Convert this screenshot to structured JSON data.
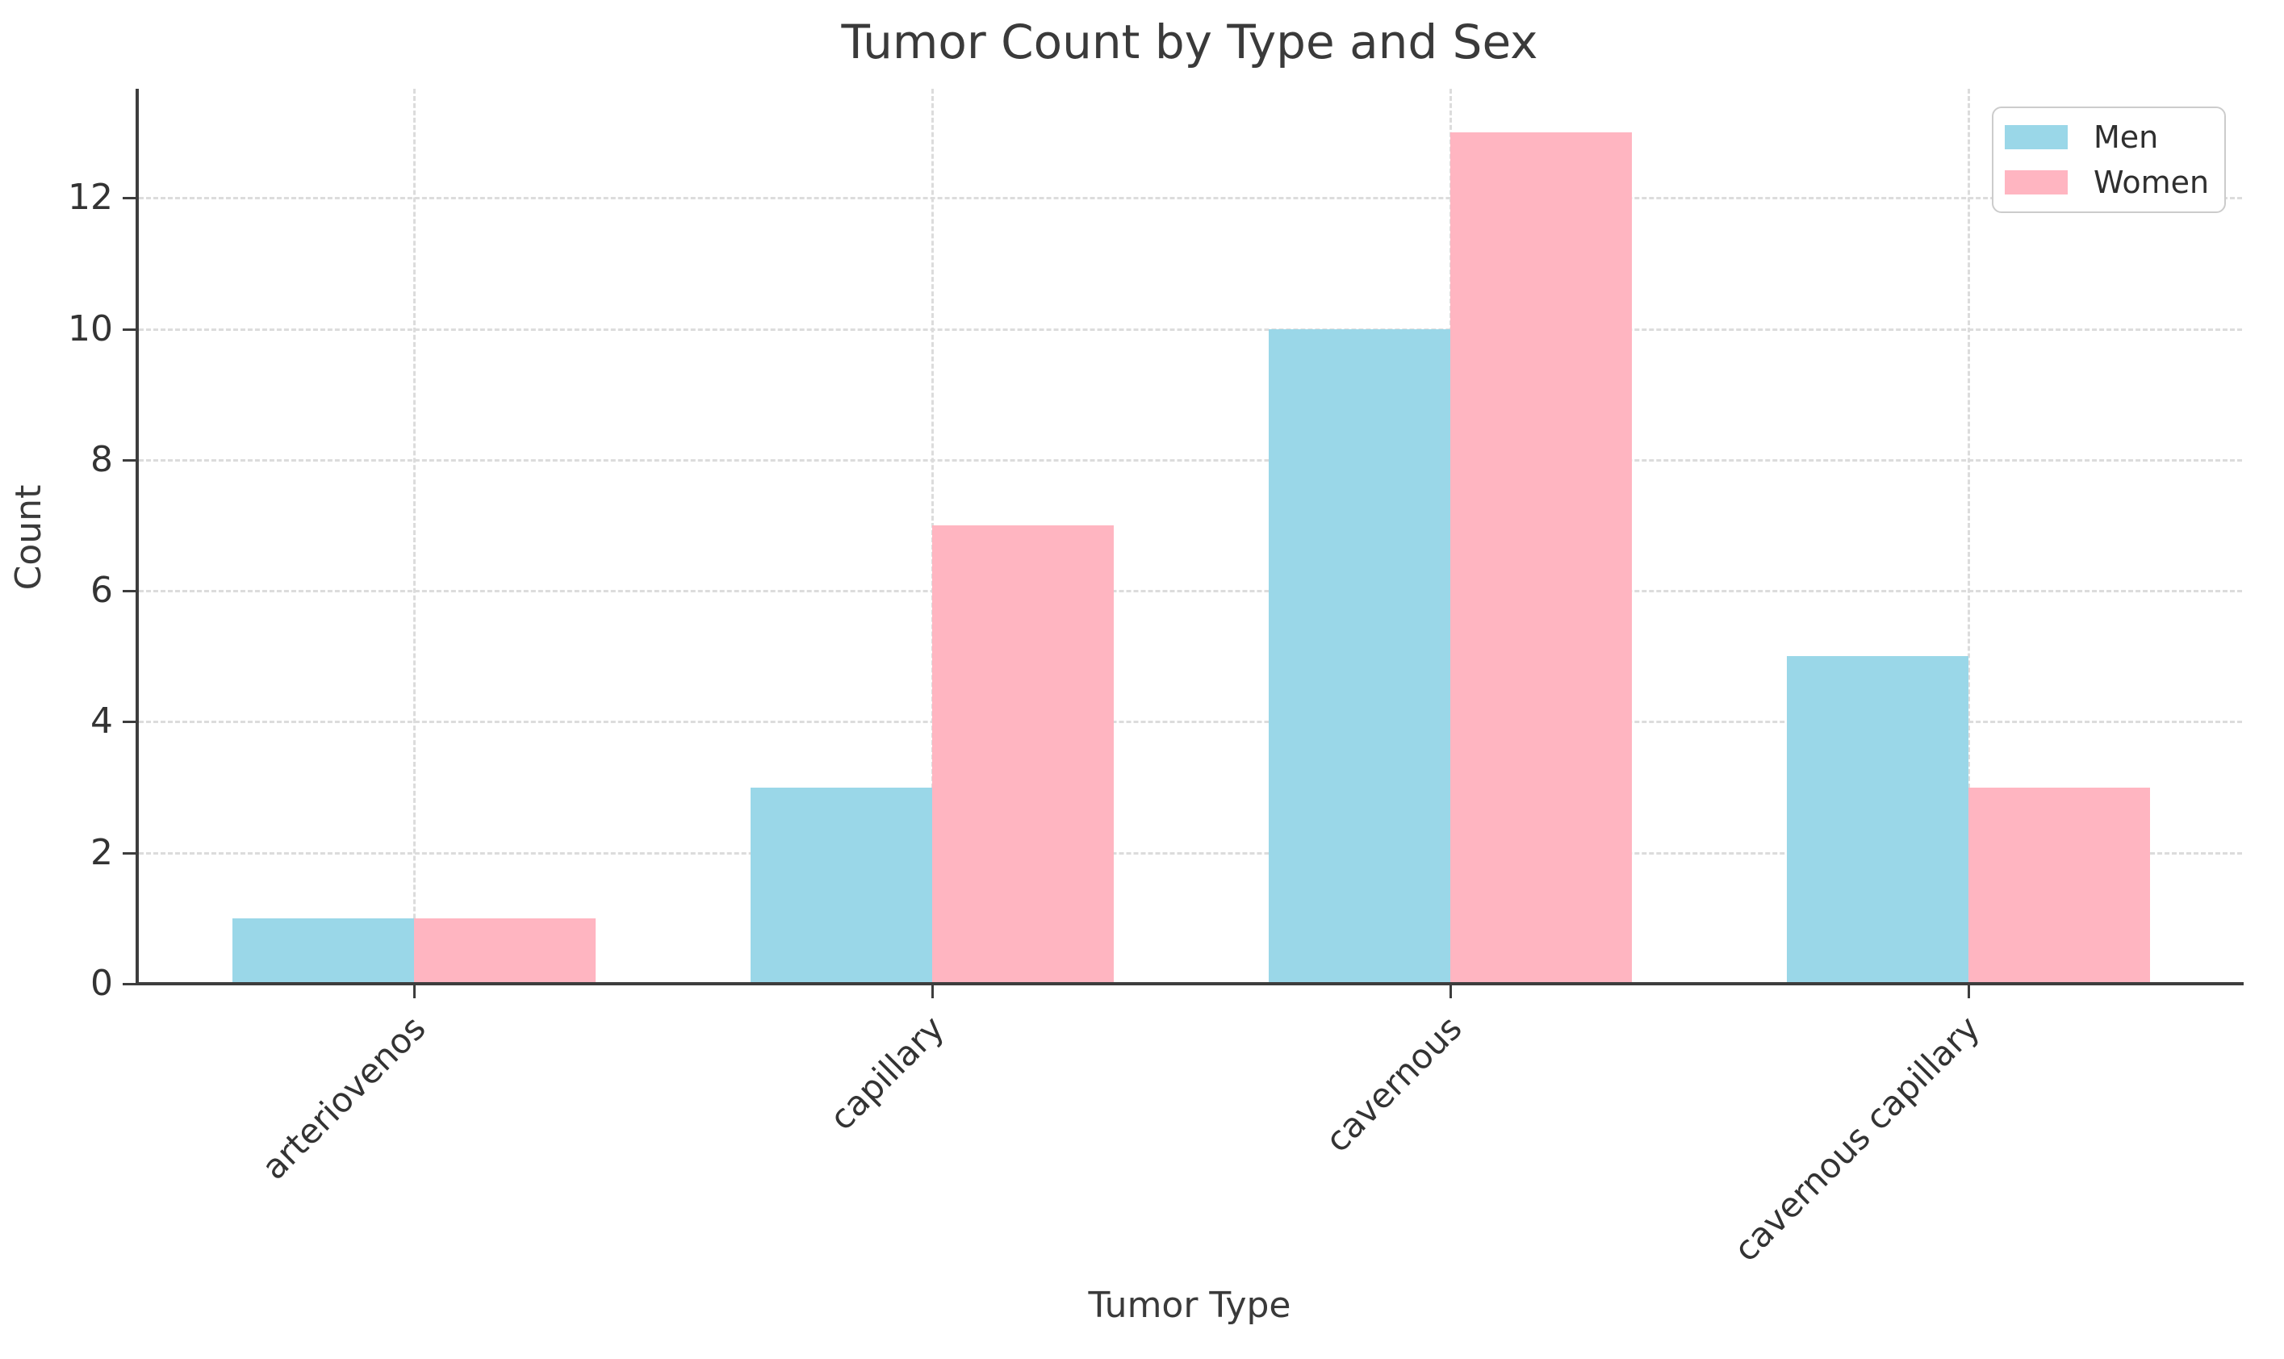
{
  "chart_data": {
    "type": "bar",
    "title": "Tumor Count by Type and Sex",
    "xlabel": "Tumor Type",
    "ylabel": "Count",
    "categories": [
      "arteriovenos",
      "capillary",
      "cavernous",
      "cavernous capillary"
    ],
    "series": [
      {
        "name": "Men",
        "color": "#9AD7E8",
        "values": [
          1,
          3,
          10,
          5
        ]
      },
      {
        "name": "Women",
        "color": "#FFB5C1",
        "values": [
          1,
          7,
          13,
          3
        ]
      }
    ],
    "yticks": [
      0,
      2,
      4,
      6,
      8,
      10,
      12
    ],
    "ylim": [
      0,
      13.67
    ],
    "grid": "dashed",
    "legend_position": "upper right"
  }
}
